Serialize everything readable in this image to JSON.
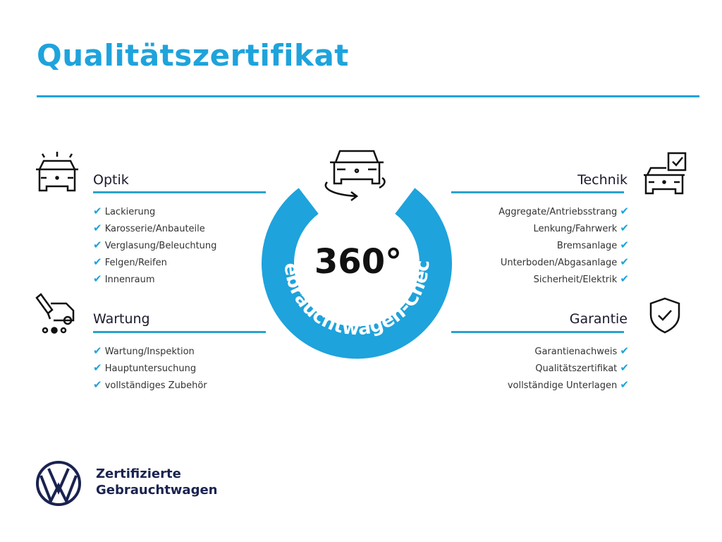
{
  "title": "Qualitätszertifikat",
  "accent_color": "#1ea3dc",
  "center": {
    "big": "360°",
    "ring_text": "Gebrauchtwagen-Check",
    "icon": "car-rotate-icon"
  },
  "sections": {
    "optik": {
      "title": "Optik",
      "icon": "car-lights-icon",
      "items": [
        "Lackierung",
        "Karosserie/Anbauteile",
        "Verglasung/Beleuchtung",
        "Felgen/Reifen",
        "Innenraum"
      ]
    },
    "wartung": {
      "title": "Wartung",
      "icon": "car-service-icon",
      "items": [
        "Wartung/Inspektion",
        "Hauptuntersuchung",
        "vollständiges Zubehör"
      ]
    },
    "technik": {
      "title": "Technik",
      "icon": "car-checklist-icon",
      "items": [
        "Aggregate/Antriebsstrang",
        "Lenkung/Fahrwerk",
        "Bremsanlage",
        "Unterboden/Abgasanlage",
        "Sicherheit/Elektrik"
      ]
    },
    "garantie": {
      "title": "Garantie",
      "icon": "shield-check-icon",
      "items": [
        "Garantienachweis",
        "Qualitätszertifikat",
        "vollständige Unterlagen"
      ]
    }
  },
  "check_glyph": "✔",
  "brand": {
    "line1": "Zertifizierte",
    "line2": "Gebrauchtwagen",
    "logo": "vw-logo"
  }
}
